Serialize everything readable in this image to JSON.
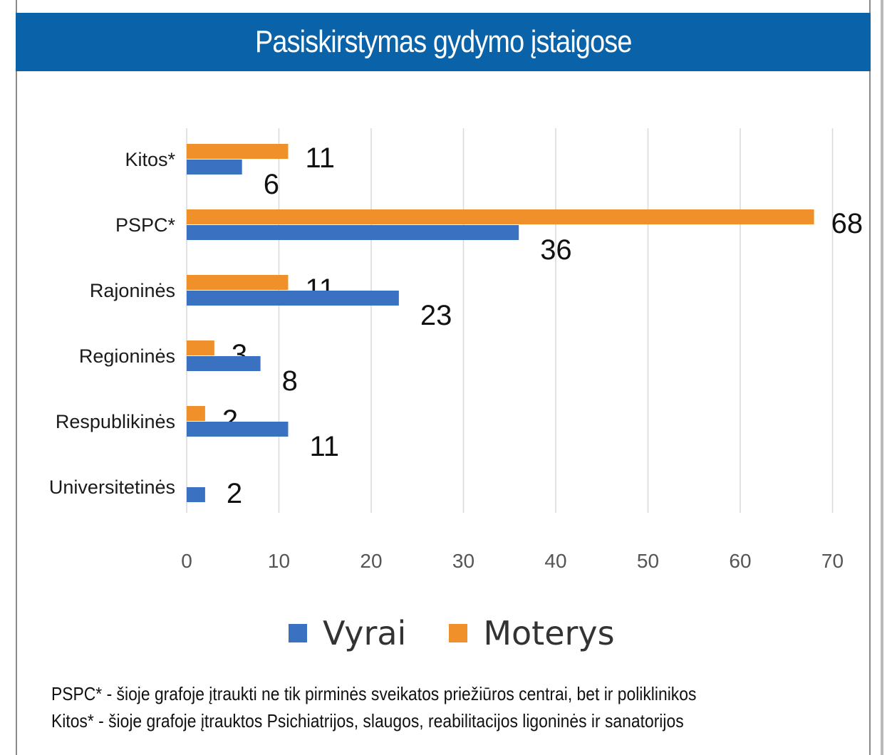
{
  "title": "Pasiskirstymas gydymo įstaigose",
  "colors": {
    "title_bg": "#0a63a8",
    "vyrai": "#3a71c0",
    "moterys": "#f0902a",
    "grid": "#d9d9d9"
  },
  "legend": [
    {
      "label": "Vyrai",
      "color": "#3a71c0"
    },
    {
      "label": "Moterys",
      "color": "#f0902a"
    }
  ],
  "chart_data": {
    "type": "bar",
    "orientation": "horizontal",
    "categories": [
      "Kitos*",
      "PSPC*",
      "Rajoninės",
      "Regioninės",
      "Respublikinės",
      "Universitetinės"
    ],
    "series": [
      {
        "name": "Moterys",
        "values": [
          11,
          68,
          11,
          3,
          2,
          null
        ]
      },
      {
        "name": "Vyrai",
        "values": [
          6,
          36,
          23,
          8,
          11,
          2
        ]
      }
    ],
    "xlim": [
      0,
      70
    ],
    "xticks": [
      0,
      10,
      20,
      30,
      40,
      50,
      60,
      70
    ],
    "grid": true,
    "legend_position": "bottom",
    "data_labels": true
  },
  "footnotes": [
    "PSPC* - šioje grafoje įtraukti ne tik pirminės sveikatos priežiūros centrai, bet ir poliklinikos",
    "Kitos* - šioje grafoje įtrauktos Psichiatrijos, slaugos, reabilitacijos ligoninės ir sanatorijos"
  ]
}
